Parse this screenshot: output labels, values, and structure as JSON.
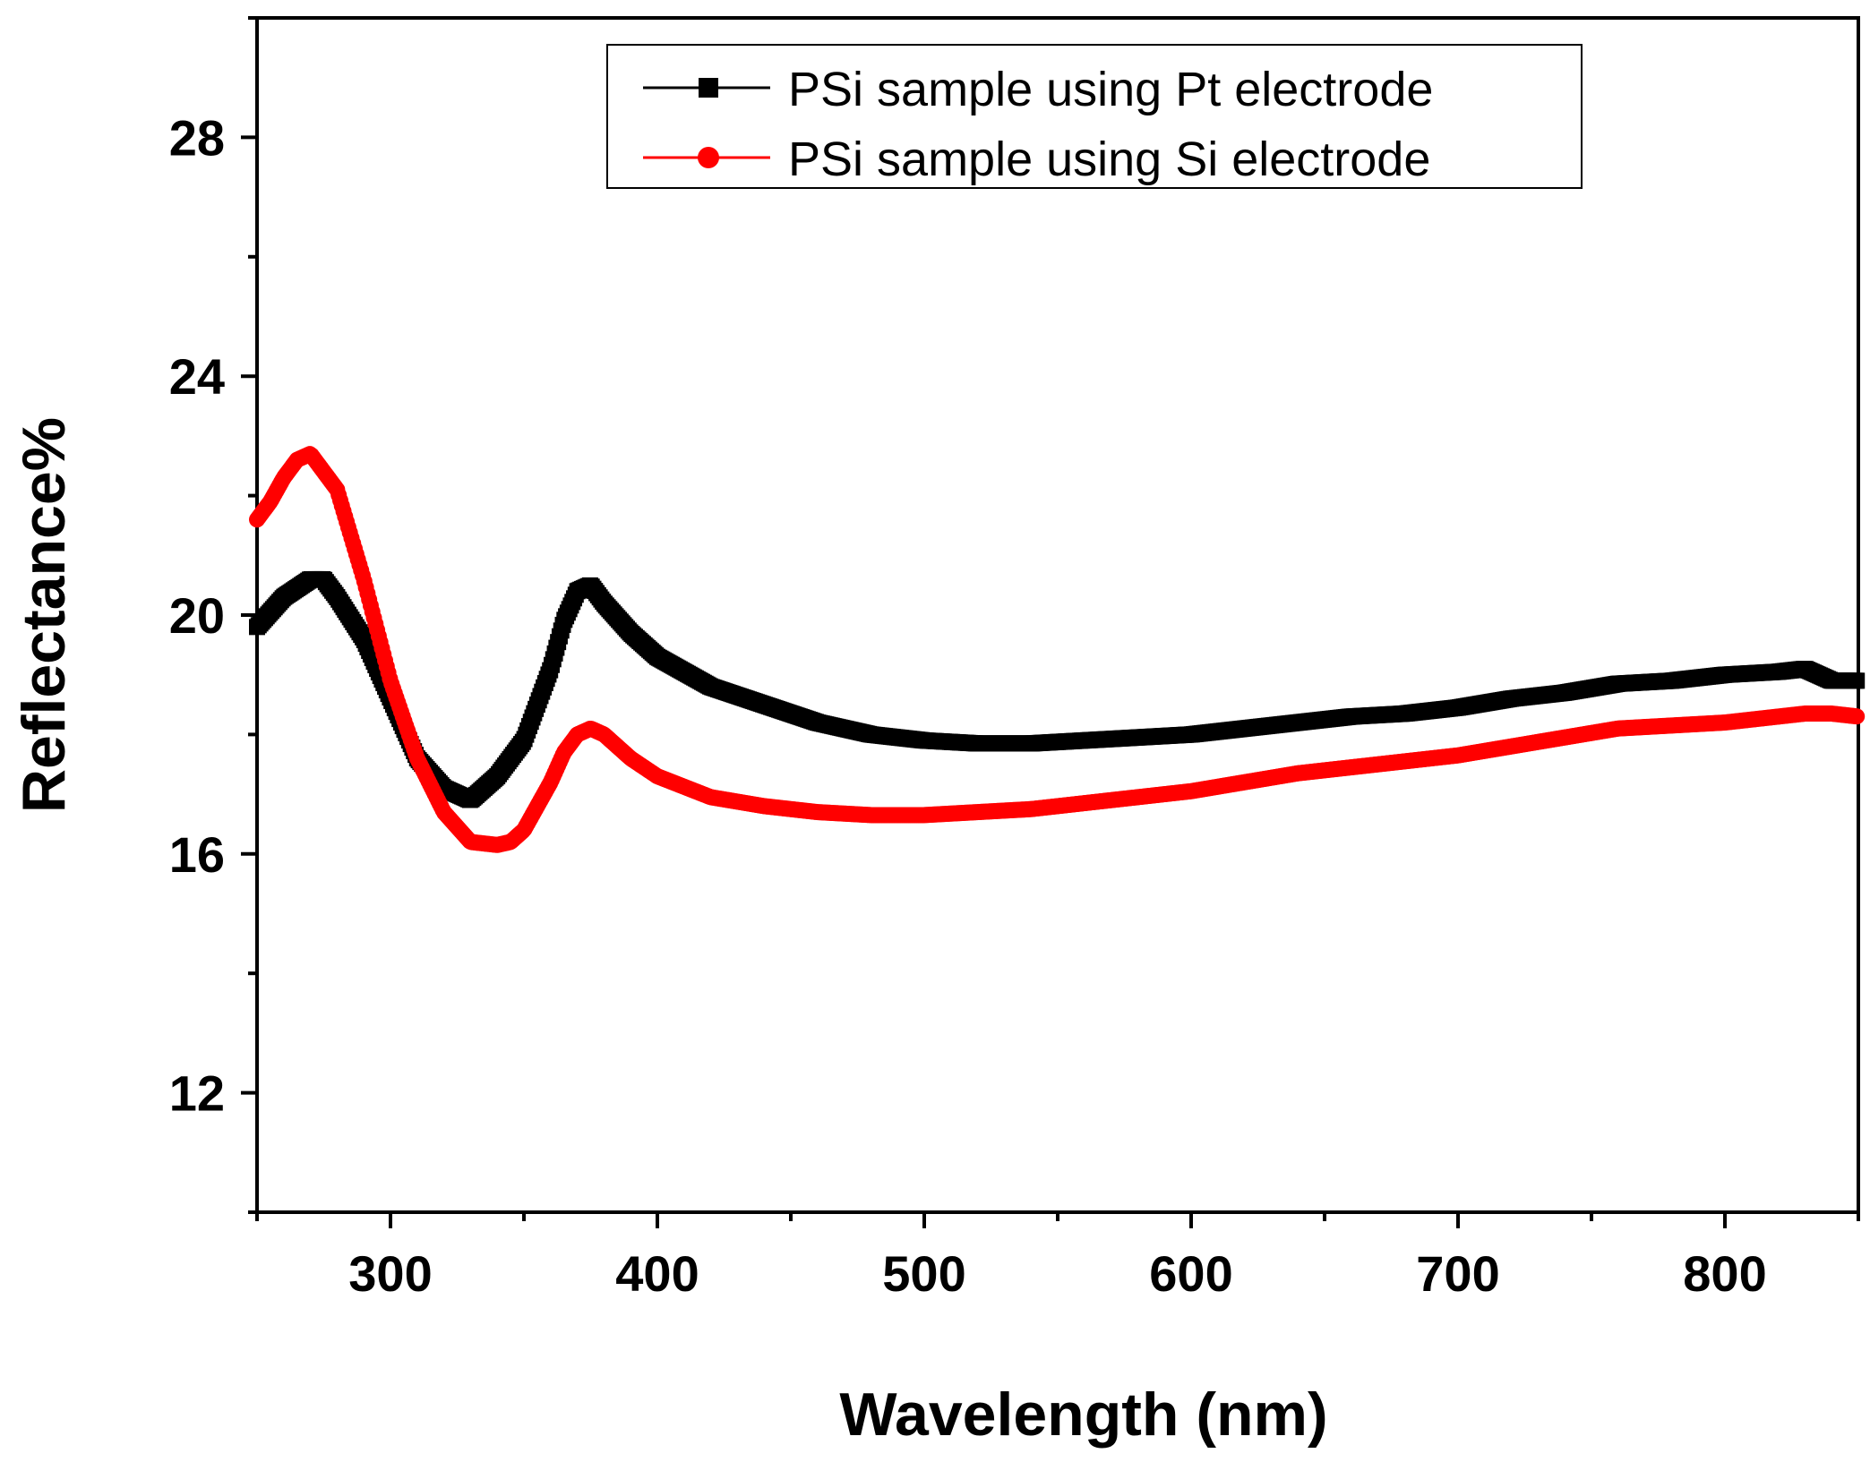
{
  "chart_data": {
    "type": "line",
    "xlabel": "Wavelength (nm)",
    "ylabel": "Reflectance%",
    "xlim": [
      250,
      850
    ],
    "ylim": [
      10,
      30
    ],
    "x_ticks": [
      300,
      400,
      500,
      600,
      700,
      800
    ],
    "x_tick_labels": [
      "300",
      "400",
      "500",
      "600",
      "700",
      "800"
    ],
    "y_ticks": [
      12,
      16,
      20,
      24,
      28
    ],
    "y_tick_labels": [
      "12",
      "16",
      "20",
      "24",
      "28"
    ],
    "grid": false,
    "legend_position": "top-right",
    "series": [
      {
        "name": "PSi sample using Pt electrode",
        "color": "#000000",
        "marker": "square",
        "x": [
          250,
          260,
          270,
          275,
          280,
          290,
          300,
          310,
          320,
          330,
          340,
          350,
          360,
          365,
          370,
          375,
          380,
          390,
          400,
          420,
          440,
          460,
          480,
          500,
          520,
          540,
          560,
          580,
          600,
          620,
          640,
          660,
          680,
          700,
          720,
          740,
          760,
          780,
          800,
          820,
          830,
          840,
          850
        ],
        "y": [
          19.8,
          20.3,
          20.6,
          20.6,
          20.3,
          19.6,
          18.6,
          17.6,
          17.1,
          16.9,
          17.3,
          17.9,
          19.1,
          19.9,
          20.4,
          20.5,
          20.2,
          19.7,
          19.3,
          18.8,
          18.5,
          18.2,
          18.0,
          17.9,
          17.85,
          17.85,
          17.9,
          17.95,
          18.0,
          18.1,
          18.2,
          18.3,
          18.35,
          18.45,
          18.6,
          18.7,
          18.85,
          18.9,
          19.0,
          19.05,
          19.1,
          18.9,
          18.9
        ]
      },
      {
        "name": "PSi sample using Si electrode",
        "color": "#ff0000",
        "marker": "circle",
        "x": [
          250,
          255,
          260,
          265,
          270,
          275,
          280,
          290,
          300,
          310,
          320,
          330,
          340,
          345,
          350,
          360,
          365,
          370,
          375,
          380,
          390,
          400,
          420,
          440,
          460,
          480,
          500,
          520,
          540,
          560,
          580,
          600,
          620,
          640,
          660,
          680,
          700,
          720,
          740,
          760,
          780,
          800,
          820,
          830,
          840,
          850
        ],
        "y": [
          21.6,
          21.9,
          22.3,
          22.6,
          22.7,
          22.4,
          22.1,
          20.6,
          18.9,
          17.6,
          16.7,
          16.2,
          16.15,
          16.2,
          16.4,
          17.2,
          17.7,
          18.0,
          18.1,
          18.0,
          17.6,
          17.3,
          16.95,
          16.8,
          16.7,
          16.65,
          16.65,
          16.7,
          16.75,
          16.85,
          16.95,
          17.05,
          17.2,
          17.35,
          17.45,
          17.55,
          17.65,
          17.8,
          17.95,
          18.1,
          18.15,
          18.2,
          18.3,
          18.35,
          18.35,
          18.3
        ]
      }
    ]
  }
}
